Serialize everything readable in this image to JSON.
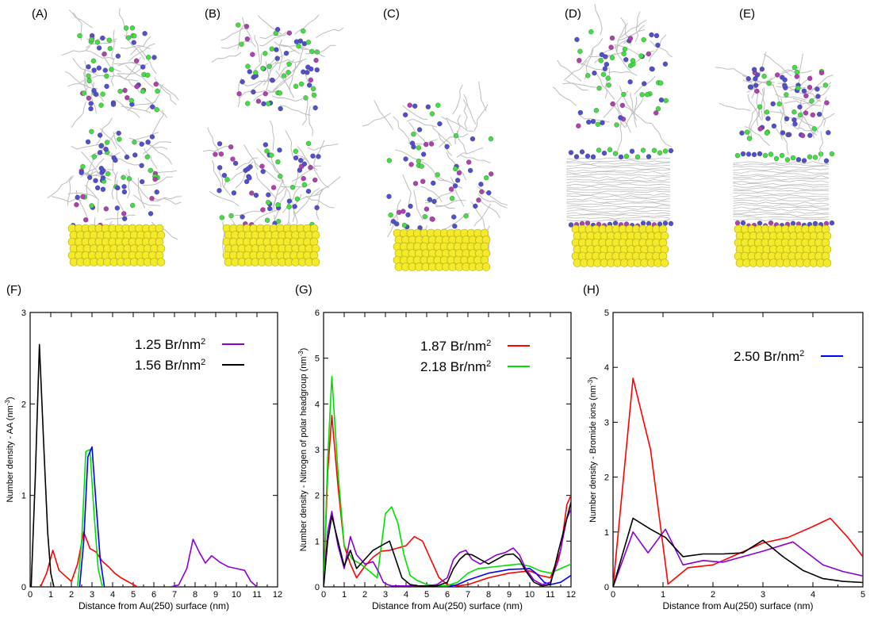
{
  "snapshots": [
    {
      "label": "(A)"
    },
    {
      "label": "(B)"
    },
    {
      "label": "(C)"
    },
    {
      "label": "(D)"
    },
    {
      "label": "(E)"
    }
  ],
  "colors": {
    "gold": "#f2ea2a",
    "gold_dark": "#b8a800",
    "chain": "#bdbdbd",
    "nitrogen": "#4f4fd0",
    "bromide": "#40e040",
    "magenta": "#b040b0",
    "red": "#ff0000",
    "black": "#000000",
    "green": "#00e000",
    "blue": "#0000ff",
    "purple": "#8b00d0"
  },
  "chart_data": [
    {
      "type": "line",
      "panel_label": "(F)",
      "xlabel": "Distance from Au(250) surface (nm)",
      "ylabel": "Number density - AA (nm",
      "ylabel_sup": "-3",
      "ylabel_tail": ")",
      "xlim": [
        0,
        12
      ],
      "ylim": [
        0,
        3
      ],
      "xticks": [
        "0",
        "1",
        "2",
        "3",
        "4",
        "5",
        "6",
        "7",
        "8",
        "9",
        "10",
        "11",
        "12"
      ],
      "yticks": [
        "0",
        "1",
        "2",
        "3"
      ],
      "legend": [
        {
          "base": "1.25 Br/nm",
          "sup": "2",
          "color": "#8b00d0"
        },
        {
          "base": "1.56 Br/nm",
          "sup": "2",
          "color": "#000000"
        }
      ],
      "series": [
        {
          "color": "#8b00d0",
          "x": [
            6.8,
            7.2,
            7.6,
            7.9,
            8.2,
            8.5,
            8.8,
            9.2,
            9.6,
            10.0,
            10.4,
            10.7,
            11.0
          ],
          "y": [
            0,
            0.02,
            0.2,
            0.52,
            0.38,
            0.26,
            0.34,
            0.27,
            0.22,
            0.2,
            0.18,
            0.06,
            0
          ]
        },
        {
          "color": "#ff0000",
          "x": [
            0.5,
            0.8,
            1.1,
            1.4,
            1.7,
            2.0,
            2.3,
            2.6,
            2.9,
            3.2,
            3.5,
            3.8,
            4.1,
            4.4,
            4.8,
            5.2
          ],
          "y": [
            0,
            0.15,
            0.4,
            0.18,
            0.12,
            0.06,
            0.25,
            0.6,
            0.42,
            0.38,
            0.28,
            0.22,
            0.15,
            0.1,
            0.05,
            0
          ]
        },
        {
          "color": "#00e000",
          "x": [
            2.3,
            2.5,
            2.7,
            2.9,
            3.1,
            3.3,
            3.5
          ],
          "y": [
            0,
            0.5,
            1.48,
            1.5,
            0.8,
            0.2,
            0
          ]
        },
        {
          "color": "#0000ff",
          "x": [
            2.4,
            2.6,
            2.8,
            3.0,
            3.2,
            3.4,
            3.6
          ],
          "y": [
            0,
            0.5,
            1.42,
            1.53,
            0.9,
            0.3,
            0
          ]
        },
        {
          "color": "#000000",
          "x": [
            0.05,
            0.25,
            0.45,
            0.65,
            0.85,
            1.0,
            1.15
          ],
          "y": [
            0,
            1.2,
            2.65,
            1.6,
            0.6,
            0.15,
            0
          ]
        }
      ]
    },
    {
      "type": "line",
      "panel_label": "(G)",
      "xlabel": "Distance from Au(250) surface (nm)",
      "ylabel": "Number density - Nitrogen of polar headgroup (nm",
      "ylabel_sup": "-3",
      "ylabel_tail": ")",
      "xlim": [
        0,
        12
      ],
      "ylim": [
        0,
        6
      ],
      "xticks": [
        "0",
        "1",
        "2",
        "3",
        "4",
        "5",
        "6",
        "7",
        "8",
        "9",
        "10",
        "11",
        "12"
      ],
      "yticks": [
        "0",
        "1",
        "2",
        "3",
        "4",
        "5",
        "6"
      ],
      "legend": [
        {
          "base": "1.87 Br/nm",
          "sup": "2",
          "color": "#ff0000"
        },
        {
          "base": "2.18 Br/nm",
          "sup": "2",
          "color": "#00e000"
        }
      ],
      "series": [
        {
          "color": "#ff0000",
          "x": [
            0,
            0.2,
            0.4,
            0.7,
            1.0,
            1.3,
            1.6,
            2.0,
            2.4,
            2.8,
            3.2,
            3.6,
            4.0,
            4.4,
            4.8,
            5.2,
            5.6,
            6.0,
            6.5,
            7.0,
            8.0,
            9.0,
            10.0,
            10.5,
            11.0,
            11.5,
            11.8,
            12.0
          ],
          "y": [
            0,
            2.5,
            3.75,
            2.2,
            0.9,
            0.5,
            0.2,
            0.45,
            0.65,
            0.78,
            0.8,
            0.85,
            0.9,
            1.1,
            1.0,
            0.6,
            0.2,
            0.05,
            0.02,
            0.05,
            0.2,
            0.3,
            0.35,
            0.25,
            0.2,
            0.8,
            1.8,
            2.0
          ]
        },
        {
          "color": "#00e000",
          "x": [
            0,
            0.2,
            0.4,
            0.7,
            1.0,
            1.4,
            1.8,
            2.2,
            2.6,
            3.0,
            3.3,
            3.6,
            3.9,
            4.2,
            4.5,
            5.0,
            5.5,
            6.0,
            6.5,
            7.0,
            7.5,
            8.5,
            9.5,
            10.0,
            10.5,
            11.0,
            11.5,
            12.0
          ],
          "y": [
            0,
            2.8,
            4.6,
            2.5,
            0.9,
            0.6,
            0.5,
            0.35,
            0.2,
            1.6,
            1.75,
            1.4,
            0.7,
            0.25,
            0.15,
            0.05,
            0.02,
            0.03,
            0.1,
            0.3,
            0.4,
            0.45,
            0.5,
            0.45,
            0.35,
            0.3,
            0.4,
            0.5
          ]
        },
        {
          "color": "#0000ff",
          "x": [
            6.0,
            6.5,
            7.0,
            8.0,
            9.0,
            10.0,
            10.3,
            10.7,
            11.0,
            11.5,
            12.0
          ],
          "y": [
            0,
            0.05,
            0.15,
            0.3,
            0.38,
            0.4,
            0.3,
            0.1,
            0.05,
            0.1,
            0.25
          ]
        },
        {
          "color": "#8b00d0",
          "x": [
            0,
            0.2,
            0.4,
            0.7,
            1.0,
            1.3,
            1.6,
            2.0,
            2.4,
            2.7,
            2.9,
            3.1,
            3.3,
            3.6,
            4.0,
            4.5,
            5.0,
            5.5,
            6.0,
            6.3,
            6.6,
            6.9,
            7.2,
            7.6,
            8.0,
            8.4,
            8.8,
            9.2,
            9.5,
            9.8,
            10.2,
            10.6,
            11.0,
            11.4,
            11.8,
            12.0
          ],
          "y": [
            0,
            1.2,
            1.65,
            0.9,
            0.4,
            1.1,
            0.7,
            0.5,
            0.55,
            0.3,
            0.1,
            0.05,
            0.02,
            0.02,
            0.02,
            0.02,
            0.02,
            0.05,
            0.2,
            0.6,
            0.75,
            0.8,
            0.6,
            0.5,
            0.6,
            0.7,
            0.75,
            0.85,
            0.7,
            0.4,
            0.15,
            0.05,
            0.1,
            0.6,
            1.5,
            1.7
          ]
        },
        {
          "color": "#000000",
          "x": [
            0,
            0.2,
            0.4,
            0.7,
            1.0,
            1.3,
            1.6,
            2.0,
            2.4,
            2.8,
            3.2,
            3.5,
            3.8,
            4.2,
            4.6,
            5.0,
            5.5,
            6.0,
            6.3,
            6.6,
            6.9,
            7.2,
            7.6,
            8.0,
            8.4,
            8.8,
            9.2,
            9.5,
            9.8,
            10.2,
            10.6,
            11.0,
            11.4,
            11.8,
            12.0
          ],
          "y": [
            0,
            1.0,
            1.55,
            1.0,
            0.45,
            0.8,
            0.4,
            0.6,
            0.8,
            0.9,
            1.0,
            0.6,
            0.2,
            0.05,
            0.02,
            0.02,
            0.02,
            0.1,
            0.4,
            0.6,
            0.72,
            0.7,
            0.6,
            0.5,
            0.6,
            0.7,
            0.72,
            0.6,
            0.35,
            0.1,
            0.02,
            0.05,
            0.8,
            1.5,
            1.85
          ]
        }
      ]
    },
    {
      "type": "line",
      "panel_label": "(H)",
      "xlabel": "Distance from Au(250) surface (nm)",
      "ylabel": "Number density - Bromide ions (nm",
      "ylabel_sup": "-3",
      "ylabel_tail": ")",
      "xlim": [
        0,
        5
      ],
      "ylim": [
        0,
        5
      ],
      "xticks": [
        "0",
        "1",
        "2",
        "3",
        "4",
        "5"
      ],
      "yticks": [
        "0",
        "1",
        "2",
        "3",
        "4",
        "5"
      ],
      "legend": [
        {
          "base": "2.50 Br/nm",
          "sup": "2",
          "color": "#0000ff"
        }
      ],
      "series": [
        {
          "color": "#ff0000",
          "x": [
            0,
            0.4,
            0.75,
            1.1,
            1.5,
            2.0,
            2.5,
            3.0,
            3.5,
            4.0,
            4.35,
            4.7,
            5.0
          ],
          "y": [
            0,
            3.8,
            2.5,
            0.05,
            0.35,
            0.4,
            0.6,
            0.8,
            0.9,
            1.1,
            1.25,
            0.9,
            0.55
          ]
        },
        {
          "color": "#8b00d0",
          "x": [
            0,
            0.4,
            0.7,
            1.05,
            1.4,
            1.8,
            2.2,
            2.6,
            3.0,
            3.6,
            4.2,
            4.6,
            5.0
          ],
          "y": [
            0,
            1.0,
            0.62,
            1.05,
            0.4,
            0.48,
            0.45,
            0.55,
            0.65,
            0.82,
            0.4,
            0.28,
            0.2
          ]
        },
        {
          "color": "#000000",
          "x": [
            0,
            0.4,
            0.75,
            1.05,
            1.4,
            1.8,
            2.2,
            2.6,
            3.0,
            3.4,
            3.8,
            4.2,
            4.6,
            5.0
          ],
          "y": [
            0,
            1.25,
            1.05,
            0.9,
            0.55,
            0.6,
            0.6,
            0.62,
            0.85,
            0.55,
            0.3,
            0.15,
            0.1,
            0.08
          ]
        }
      ]
    }
  ]
}
